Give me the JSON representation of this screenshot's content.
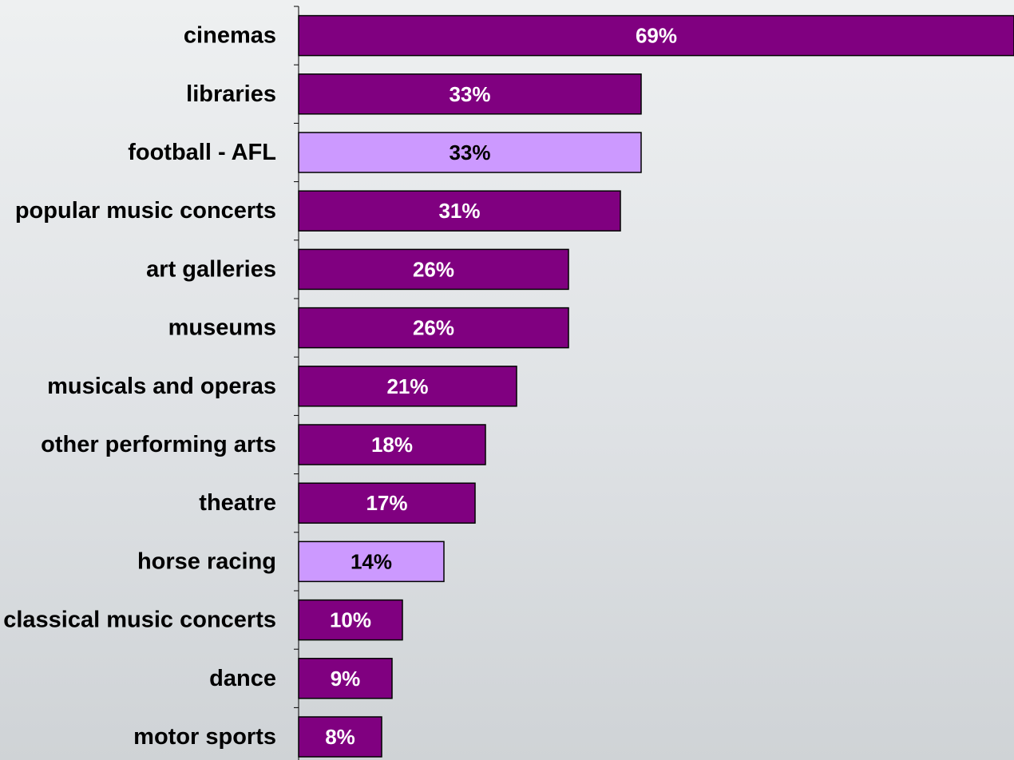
{
  "chart_data": {
    "type": "bar",
    "orientation": "horizontal",
    "categories": [
      "cinemas",
      "libraries",
      "football - AFL",
      "popular music concerts",
      "art galleries",
      "museums",
      "musicals and operas",
      "other performing arts",
      "theatre",
      "horse racing",
      "classical music concerts",
      "dance",
      "motor sports"
    ],
    "values": [
      69,
      33,
      33,
      31,
      26,
      26,
      21,
      18,
      17,
      14,
      10,
      9,
      8
    ],
    "value_labels": [
      "69%",
      "33%",
      "33%",
      "31%",
      "26%",
      "26%",
      "21%",
      "18%",
      "17%",
      "14%",
      "10%",
      "9%",
      "8%"
    ],
    "highlighted": [
      false,
      false,
      true,
      false,
      false,
      false,
      false,
      false,
      false,
      true,
      false,
      false,
      false
    ],
    "colors": {
      "default_bar": "#800080",
      "highlight_bar": "#cc99ff",
      "default_label": "#ffffff",
      "highlight_label": "#000000",
      "bar_outline": "#000000",
      "axis": "#000000"
    },
    "title": "",
    "xlabel": "",
    "ylabel": "",
    "grid": false,
    "legend": "none"
  }
}
